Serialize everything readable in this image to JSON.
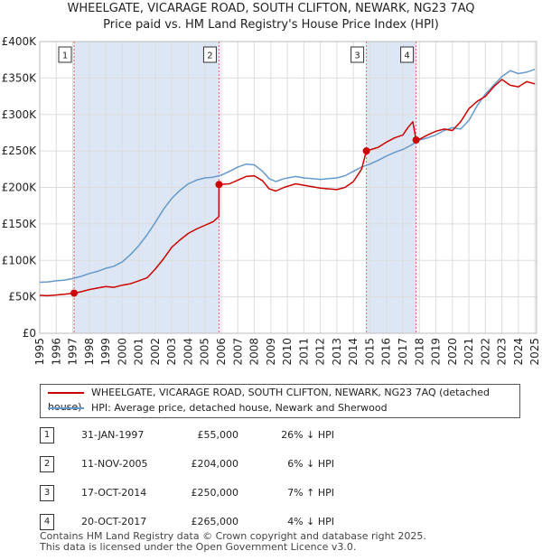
{
  "title_line1": "WHEELGATE, VICARAGE ROAD, SOUTH CLIFTON, NEWARK, NG23 7AQ",
  "title_line2": "Price paid vs. HM Land Registry's House Price Index (HPI)",
  "colors": {
    "property": "#cc0000",
    "hpi": "#6699cc",
    "shade": "#dde6f4",
    "vline": "#e06060",
    "grid": "#dddddd"
  },
  "chart_data": {
    "type": "line",
    "title": "WHEELGATE, VICARAGE ROAD, SOUTH CLIFTON, NEWARK, NG23 7AQ — Price paid vs. HM Land Registry's House Price Index (HPI)",
    "xlim": [
      1995,
      2025.1
    ],
    "ylim": [
      0,
      400000
    ],
    "y_ticks": [
      0,
      50000,
      100000,
      150000,
      200000,
      250000,
      300000,
      350000,
      400000
    ],
    "y_tick_labels": [
      "£0",
      "£50K",
      "£100K",
      "£150K",
      "£200K",
      "£250K",
      "£300K",
      "£350K",
      "£400K"
    ],
    "x_ticks": [
      1995,
      1996,
      1997,
      1998,
      1999,
      2000,
      2001,
      2002,
      2003,
      2004,
      2005,
      2006,
      2007,
      2008,
      2009,
      2010,
      2011,
      2012,
      2013,
      2014,
      2015,
      2016,
      2017,
      2018,
      2019,
      2020,
      2021,
      2022,
      2023,
      2024,
      2025
    ],
    "grid": true,
    "series": [
      {
        "name": "WHEELGATE, VICARAGE ROAD, SOUTH CLIFTON, NEWARK, NG23 7AQ (detached house)",
        "color": "#cc0000",
        "x": [
          1995.0,
          1995.5,
          1996.0,
          1996.5,
          1997.08,
          1997.5,
          1998.0,
          1998.5,
          1999.0,
          1999.5,
          2000.0,
          2000.5,
          2001.0,
          2001.5,
          2002.0,
          2002.5,
          2003.0,
          2003.5,
          2004.0,
          2004.5,
          2005.0,
          2005.5,
          2005.85,
          2005.86,
          2006.5,
          2007.0,
          2007.5,
          2008.0,
          2008.5,
          2008.9,
          2009.3,
          2009.8,
          2010.5,
          2011.0,
          2011.5,
          2012.0,
          2012.5,
          2013.0,
          2013.5,
          2014.0,
          2014.5,
          2014.79,
          2015.5,
          2016.0,
          2016.5,
          2017.0,
          2017.3,
          2017.6,
          2017.8,
          2018.0,
          2018.5,
          2019.0,
          2019.5,
          2020.0,
          2020.5,
          2021.0,
          2021.5,
          2022.0,
          2022.5,
          2023.0,
          2023.5,
          2024.0,
          2024.5,
          2025.0
        ],
        "values": [
          52000,
          51500,
          52500,
          53500,
          55000,
          57000,
          60000,
          62000,
          64000,
          63000,
          66000,
          68000,
          72000,
          76000,
          88000,
          102000,
          118000,
          128000,
          137000,
          143000,
          148000,
          153000,
          160000,
          204000,
          205000,
          210000,
          215000,
          216000,
          209000,
          198000,
          195000,
          200000,
          205000,
          203000,
          201000,
          199000,
          198000,
          197000,
          200000,
          208000,
          225000,
          250000,
          255000,
          262000,
          268000,
          272000,
          282000,
          290000,
          265000,
          266000,
          272000,
          277000,
          280000,
          278000,
          290000,
          308000,
          318000,
          325000,
          338000,
          348000,
          340000,
          338000,
          345000,
          342000
        ]
      },
      {
        "name": "HPI: Average price, detached house, Newark and Sherwood",
        "color": "#6699cc",
        "x": [
          1995.0,
          1995.5,
          1996.0,
          1996.5,
          1997.0,
          1997.5,
          1998.0,
          1998.5,
          1999.0,
          1999.5,
          2000.0,
          2000.5,
          2001.0,
          2001.5,
          2002.0,
          2002.5,
          2003.0,
          2003.5,
          2004.0,
          2004.5,
          2005.0,
          2005.5,
          2006.0,
          2006.5,
          2007.0,
          2007.5,
          2008.0,
          2008.5,
          2008.9,
          2009.3,
          2009.8,
          2010.5,
          2011.0,
          2011.5,
          2012.0,
          2012.5,
          2013.0,
          2013.5,
          2014.0,
          2014.5,
          2015.0,
          2015.5,
          2016.0,
          2016.5,
          2017.0,
          2017.5,
          2018.0,
          2018.5,
          2019.0,
          2019.5,
          2020.0,
          2020.5,
          2021.0,
          2021.5,
          2022.0,
          2022.5,
          2023.0,
          2023.5,
          2024.0,
          2024.5,
          2025.0
        ],
        "values": [
          70000,
          70500,
          72000,
          73000,
          75000,
          78000,
          82000,
          85000,
          89000,
          92000,
          98000,
          108000,
          120000,
          135000,
          152000,
          170000,
          185000,
          196000,
          205000,
          210000,
          213000,
          214000,
          217000,
          222000,
          228000,
          232000,
          231000,
          222000,
          212000,
          208000,
          212000,
          215000,
          213000,
          212000,
          211000,
          212000,
          213000,
          216000,
          222000,
          228000,
          232000,
          237000,
          243000,
          248000,
          252000,
          258000,
          265000,
          268000,
          272000,
          278000,
          282000,
          280000,
          292000,
          312000,
          328000,
          340000,
          352000,
          360000,
          356000,
          358000,
          362000
        ]
      }
    ],
    "annotations": [
      {
        "label": "1",
        "x": 1997.08,
        "price": 55000
      },
      {
        "label": "2",
        "x": 2005.86,
        "price": 204000
      },
      {
        "label": "3",
        "x": 2014.79,
        "price": 250000
      },
      {
        "label": "4",
        "x": 2017.8,
        "price": 265000
      }
    ],
    "shaded_ranges": [
      [
        1997.08,
        2005.86
      ],
      [
        2014.79,
        2017.8
      ]
    ],
    "legend_position": "below"
  },
  "legend": {
    "property": "WHEELGATE, VICARAGE ROAD, SOUTH CLIFTON, NEWARK, NG23 7AQ (detached house)",
    "hpi": "HPI: Average price, detached house, Newark and Sherwood"
  },
  "sales": [
    {
      "num": "1",
      "date": "31-JAN-1997",
      "price": "£55,000",
      "hpi": "26% ↓ HPI"
    },
    {
      "num": "2",
      "date": "11-NOV-2005",
      "price": "£204,000",
      "hpi": "6% ↓ HPI"
    },
    {
      "num": "3",
      "date": "17-OCT-2014",
      "price": "£250,000",
      "hpi": "7% ↑ HPI"
    },
    {
      "num": "4",
      "date": "20-OCT-2017",
      "price": "£265,000",
      "hpi": "4% ↓ HPI"
    }
  ],
  "footer_line1": "Contains HM Land Registry data © Crown copyright and database right 2025.",
  "footer_line2": "This data is licensed under the Open Government Licence v3.0."
}
